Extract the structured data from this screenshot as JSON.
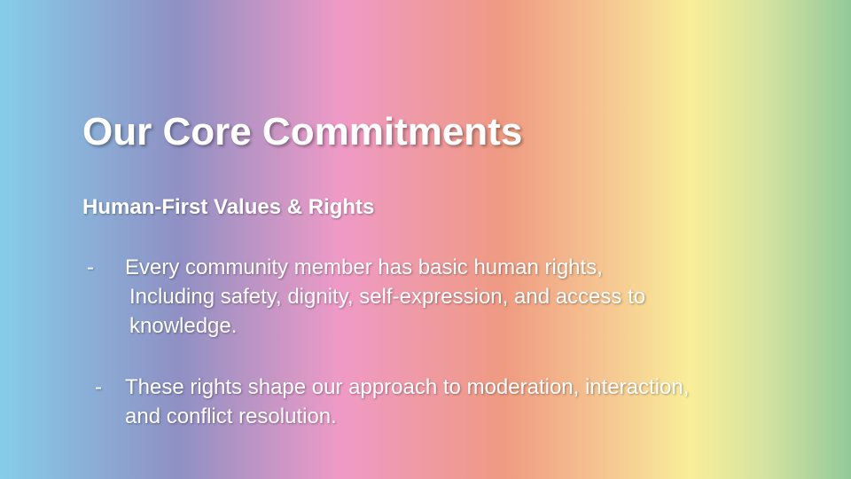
{
  "slide": {
    "title": "Our Core Commitments",
    "subtitle": "Human-First Values & Rights",
    "bullets": [
      {
        "marker": "-",
        "lines": [
          "Every community member has basic human rights,",
          "Including safety, dignity, self-expression, and access to",
          "knowledge."
        ]
      },
      {
        "marker": "-",
        "lines": [
          "These rights shape our approach to moderation, interaction,",
          "and conflict resolution."
        ]
      }
    ]
  },
  "colors": {
    "text": "#ffffff",
    "gradient": [
      "#86cdea",
      "#8f90c4",
      "#ef9ac6",
      "#ef9a82",
      "#f6c992",
      "#f9ee99",
      "#d4e3a0",
      "#92c99a"
    ]
  }
}
